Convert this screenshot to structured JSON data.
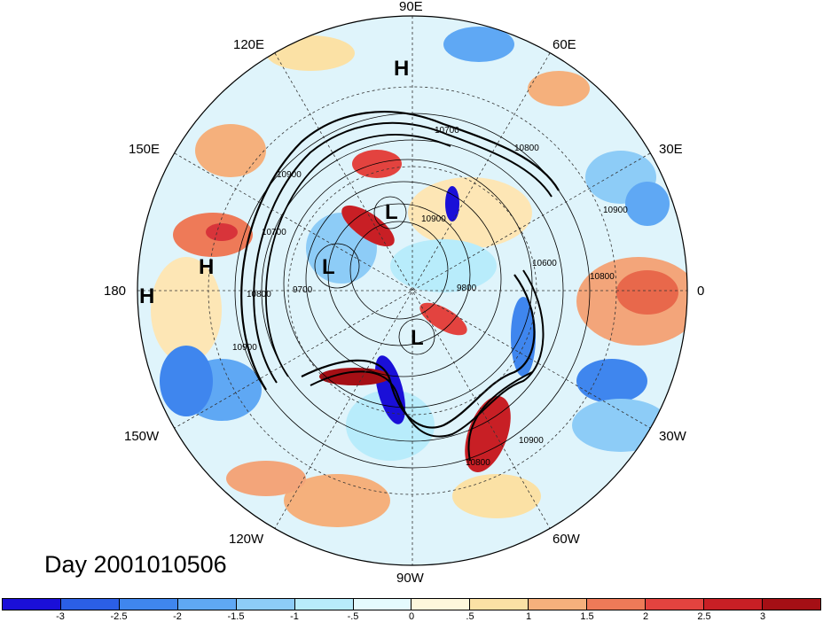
{
  "title": "Day 2001010506",
  "longitude_labels": {
    "e90": "90E",
    "e120": "120E",
    "e60": "60E",
    "e150": "150E",
    "e30": "30E",
    "e180": "180",
    "e0": "0",
    "w150": "150W",
    "w30": "30W",
    "w120": "120W",
    "w60": "60W",
    "w90": "90W"
  },
  "pressure_centers": {
    "h_north": "H",
    "h_west": "H",
    "h_far_west": "H",
    "l_upper": "L",
    "l_left": "L",
    "l_center": "L"
  },
  "contour_labels": {
    "c1": "10700",
    "c2": "10800",
    "c3": "10900",
    "c4": "10900",
    "c5": "10700",
    "c6": "10600",
    "c7": "10800",
    "c8": "10900",
    "c9": "9700",
    "c10": "9800",
    "c11": "10900",
    "c12": "10800",
    "c13": "10900",
    "c14": "10800"
  },
  "colorbar": {
    "ticks": [
      "-3",
      "-2.5",
      "-2",
      "-1.5",
      "-1",
      "-.5",
      "0",
      ".5",
      "1",
      "1.5",
      "2",
      "2.5",
      "3"
    ],
    "colors": [
      "#1a0fd8",
      "#2b5fe6",
      "#3f86ee",
      "#5fa8f4",
      "#8dccf7",
      "#b8ecfb",
      "#e5fbfd",
      "#fdf7dc",
      "#fbe1a5",
      "#f5b07c",
      "#ee7a58",
      "#e3433f",
      "#c81f25",
      "#a50f15"
    ]
  }
}
